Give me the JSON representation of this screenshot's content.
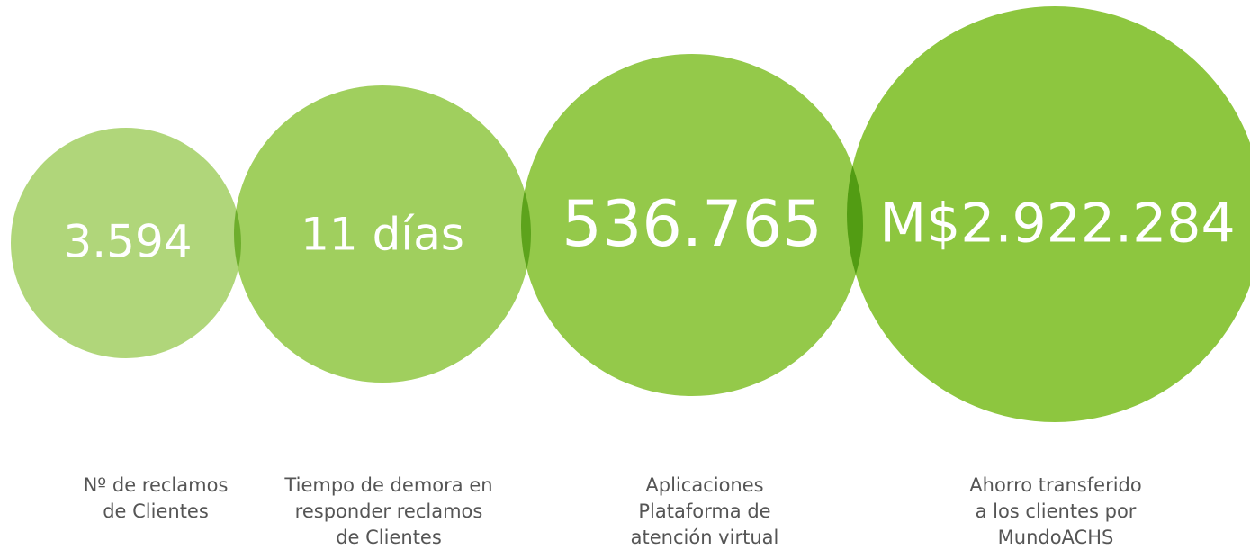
{
  "items": [
    {
      "value": "3.594",
      "label": [
        "Nº de reclamos",
        "de Clientes"
      ]
    },
    {
      "value": "11 días",
      "label": [
        "Tiempo de demora en",
        "responder reclamos",
        "de Clientes"
      ]
    },
    {
      "value": "536.765",
      "label": [
        "Aplicaciones",
        "Plataforma de",
        "atención virtual"
      ]
    },
    {
      "value": "M$2.922.284",
      "label": [
        "Ahorro transferido",
        "a los clientes por",
        "MundoACHS"
      ]
    }
  ]
}
